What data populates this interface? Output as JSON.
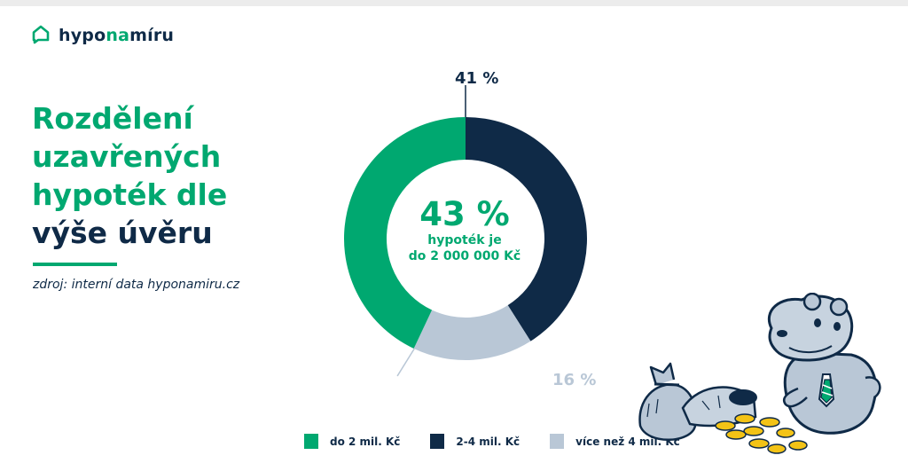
{
  "brand": {
    "name_prefix": "hypo",
    "name_accent": "na",
    "name_suffix": "míru"
  },
  "heading": {
    "line1": "Rozdělení",
    "line2": "uzavřených",
    "line3": "hypoték dle",
    "line4": "výše úvěru"
  },
  "source": "zdroj: interní data hyponamiru.cz",
  "colors": {
    "green": "#00a870",
    "navy": "#0f2a47",
    "light": "#b9c7d6"
  },
  "center": {
    "big": "43 %",
    "line1": "hypoték je",
    "line2": "do 2 000 000 Kč"
  },
  "chart_data": {
    "type": "pie",
    "categories": [
      "do 2 mil. Kč",
      "2-4 mil. Kč",
      "více než 4 mil. Kč"
    ],
    "values": [
      43,
      41,
      16
    ],
    "value_labels": [
      "43 %",
      "41 %",
      "16 %"
    ],
    "colors": [
      "#00a870",
      "#0f2a47",
      "#b9c7d6"
    ],
    "donut": true,
    "legend_position": "bottom"
  }
}
